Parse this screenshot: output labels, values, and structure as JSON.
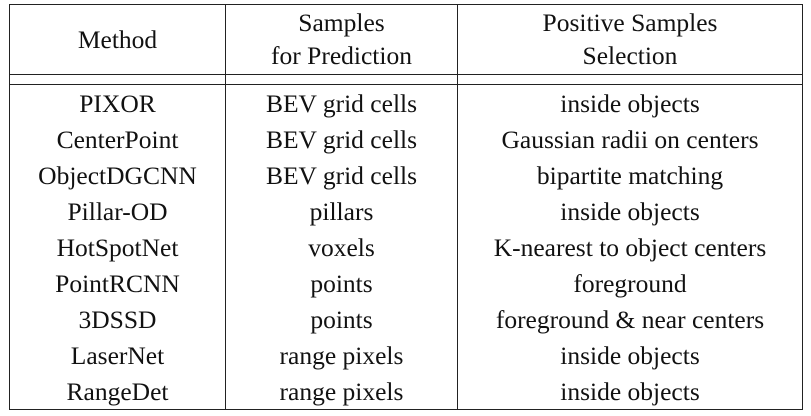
{
  "table": {
    "headers": {
      "method": "Method",
      "samples_line1": "Samples",
      "samples_line2": "for Prediction",
      "positive_line1": "Positive Samples",
      "positive_line2": "Selection"
    },
    "rows": [
      {
        "method": "PIXOR",
        "samples": "BEV grid cells",
        "selection": "inside objects"
      },
      {
        "method": "CenterPoint",
        "samples": "BEV grid cells",
        "selection": "Gaussian radii on centers"
      },
      {
        "method": "ObjectDGCNN",
        "samples": "BEV grid cells",
        "selection": "bipartite matching"
      },
      {
        "method": "Pillar-OD",
        "samples": "pillars",
        "selection": "inside objects"
      },
      {
        "method": "HotSpotNet",
        "samples": "voxels",
        "selection": "K-nearest to object centers"
      },
      {
        "method": "PointRCNN",
        "samples": "points",
        "selection": "foreground"
      },
      {
        "method": "3DSSD",
        "samples": "points",
        "selection": "foreground & near centers"
      },
      {
        "method": "LaserNet",
        "samples": "range pixels",
        "selection": "inside objects"
      },
      {
        "method": "RangeDet",
        "samples": "range pixels",
        "selection": "inside objects"
      }
    ]
  }
}
